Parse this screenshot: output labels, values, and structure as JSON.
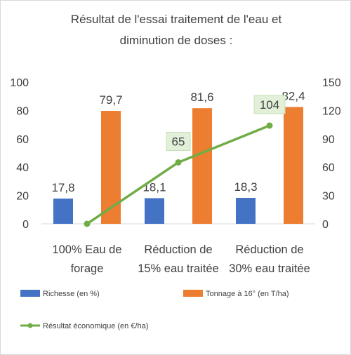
{
  "chart_data": {
    "type": "bar",
    "title": "Résultat de l'essai traitement de l'eau et diminution de doses :",
    "categories": [
      [
        "100% Eau de",
        "forage"
      ],
      [
        "Réduction de",
        "15% eau traitée"
      ],
      [
        "Réduction de",
        "30% eau traitée"
      ]
    ],
    "series": [
      {
        "name": "Richesse (en %)",
        "type": "bar",
        "axis": "left",
        "color": "#4472c4",
        "values": [
          17.8,
          18.1,
          18.3
        ],
        "labels": [
          "17,8",
          "18,1",
          "18,3"
        ]
      },
      {
        "name": "Tonnage à 16° (en T/ha)",
        "type": "bar",
        "axis": "left",
        "color": "#ed7d31",
        "values": [
          79.7,
          81.6,
          82.4
        ],
        "labels": [
          "79,7",
          "81,6",
          "82,4"
        ]
      },
      {
        "name": "Résultat économique (en €/ha)",
        "type": "line",
        "axis": "right",
        "color": "#70ad47",
        "values": [
          0,
          65,
          104
        ],
        "labels": [
          "",
          "65",
          "104"
        ]
      }
    ],
    "y_left": {
      "min": 0,
      "max": 100,
      "ticks": [
        "0",
        "20",
        "40",
        "60",
        "80",
        "100"
      ]
    },
    "y_right": {
      "min": 0,
      "max": 150,
      "ticks": [
        "0",
        "30",
        "60",
        "90",
        "120",
        "150"
      ]
    },
    "legend_position": "bottom",
    "grid": false
  }
}
